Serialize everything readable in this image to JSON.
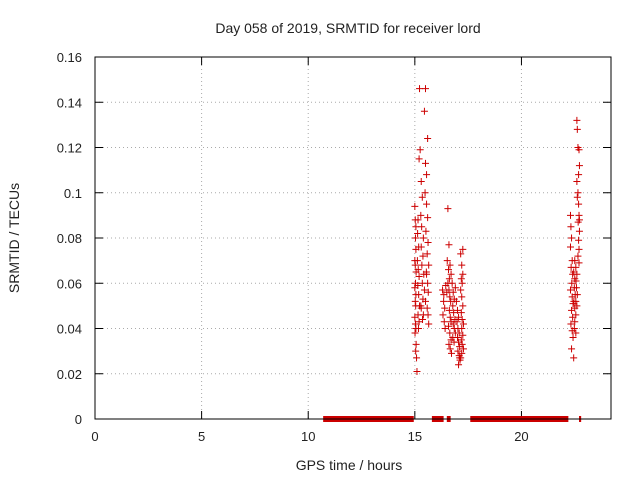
{
  "chart_data": {
    "type": "scatter",
    "title": "Day 058 of 2019, SRMTID for receiver lord",
    "xlabel": "GPS time / hours",
    "ylabel": "SRMTID / TECUs",
    "xlim": [
      0,
      24.2
    ],
    "ylim": [
      0,
      0.16
    ],
    "xticks": [
      "0",
      "5",
      "10",
      "15",
      "20"
    ],
    "xtick_values": [
      0,
      5,
      10,
      15,
      20
    ],
    "yticks": [
      "0",
      "0.02",
      "0.04",
      "0.06",
      "0.08",
      "0.1",
      "0.12",
      "0.14",
      "0.16"
    ],
    "ytick_values": [
      0,
      0.02,
      0.04,
      0.06,
      0.08,
      0.1,
      0.12,
      0.14,
      0.16
    ],
    "grid": true,
    "marker": "+",
    "color": "#cc0000",
    "series": [
      {
        "points": [
          [
            15.0,
            0.094
          ],
          [
            15.02,
            0.088
          ],
          [
            15.05,
            0.085
          ],
          [
            15.03,
            0.08
          ],
          [
            15.05,
            0.075
          ],
          [
            15.0,
            0.07
          ],
          [
            15.02,
            0.068
          ],
          [
            15.06,
            0.065
          ],
          [
            15.03,
            0.06
          ],
          [
            15.0,
            0.058
          ],
          [
            15.05,
            0.055
          ],
          [
            15.02,
            0.052
          ],
          [
            15.04,
            0.05
          ],
          [
            15.0,
            0.045
          ],
          [
            15.03,
            0.042
          ],
          [
            15.05,
            0.04
          ],
          [
            15.01,
            0.038
          ],
          [
            15.06,
            0.033
          ],
          [
            15.04,
            0.03
          ],
          [
            15.08,
            0.027
          ],
          [
            15.1,
            0.021
          ],
          [
            15.15,
            0.088
          ],
          [
            15.13,
            0.082
          ],
          [
            15.18,
            0.076
          ],
          [
            15.12,
            0.07
          ],
          [
            15.16,
            0.066
          ],
          [
            15.2,
            0.063
          ],
          [
            15.14,
            0.059
          ],
          [
            15.18,
            0.055
          ],
          [
            15.22,
            0.05
          ],
          [
            15.15,
            0.046
          ],
          [
            15.2,
            0.043
          ],
          [
            15.17,
            0.04
          ],
          [
            15.2,
            0.115
          ],
          [
            15.25,
            0.119
          ],
          [
            15.22,
            0.146
          ],
          [
            15.3,
            0.105
          ],
          [
            15.35,
            0.098
          ],
          [
            15.28,
            0.09
          ],
          [
            15.32,
            0.085
          ],
          [
            15.4,
            0.08
          ],
          [
            15.3,
            0.076
          ],
          [
            15.38,
            0.072
          ],
          [
            15.33,
            0.068
          ],
          [
            15.42,
            0.064
          ],
          [
            15.35,
            0.06
          ],
          [
            15.45,
            0.057
          ],
          [
            15.38,
            0.053
          ],
          [
            15.3,
            0.049
          ],
          [
            15.4,
            0.046
          ],
          [
            15.36,
            0.044
          ],
          [
            15.28,
            0.05
          ],
          [
            15.45,
            0.136
          ],
          [
            15.5,
            0.146
          ],
          [
            15.5,
            0.113
          ],
          [
            15.55,
            0.108
          ],
          [
            15.48,
            0.1
          ],
          [
            15.6,
            0.124
          ],
          [
            15.55,
            0.095
          ],
          [
            15.6,
            0.089
          ],
          [
            15.52,
            0.083
          ],
          [
            15.62,
            0.078
          ],
          [
            15.58,
            0.073
          ],
          [
            15.65,
            0.068
          ],
          [
            15.55,
            0.064
          ],
          [
            15.6,
            0.06
          ],
          [
            15.63,
            0.056
          ],
          [
            15.5,
            0.052
          ],
          [
            15.58,
            0.049
          ],
          [
            15.62,
            0.046
          ],
          [
            15.65,
            0.042
          ],
          [
            15.54,
            0.065
          ],
          [
            16.3,
            0.057
          ],
          [
            16.35,
            0.052
          ],
          [
            16.4,
            0.049
          ],
          [
            16.32,
            0.046
          ],
          [
            16.38,
            0.043
          ],
          [
            16.42,
            0.04
          ],
          [
            16.36,
            0.055
          ],
          [
            16.45,
            0.059
          ],
          [
            16.5,
            0.056
          ],
          [
            16.55,
            0.093
          ],
          [
            16.6,
            0.077
          ],
          [
            16.52,
            0.07
          ],
          [
            16.58,
            0.066
          ],
          [
            16.62,
            0.062
          ],
          [
            16.65,
            0.068
          ],
          [
            16.7,
            0.064
          ],
          [
            16.55,
            0.06
          ],
          [
            16.6,
            0.057
          ],
          [
            16.64,
            0.054
          ],
          [
            16.68,
            0.052
          ],
          [
            16.62,
            0.048
          ],
          [
            16.66,
            0.045
          ],
          [
            16.7,
            0.043
          ],
          [
            16.58,
            0.041
          ],
          [
            16.64,
            0.038
          ],
          [
            16.7,
            0.035
          ],
          [
            16.6,
            0.033
          ],
          [
            16.66,
            0.031
          ],
          [
            16.72,
            0.029
          ],
          [
            16.75,
            0.06
          ],
          [
            16.8,
            0.056
          ],
          [
            16.85,
            0.053
          ],
          [
            16.78,
            0.05
          ],
          [
            16.82,
            0.047
          ],
          [
            16.88,
            0.044
          ],
          [
            16.8,
            0.042
          ],
          [
            16.85,
            0.04
          ],
          [
            16.9,
            0.038
          ],
          [
            16.78,
            0.036
          ],
          [
            16.84,
            0.034
          ],
          [
            16.9,
            0.058
          ],
          [
            16.95,
            0.052
          ],
          [
            17.0,
            0.048
          ],
          [
            17.05,
            0.045
          ],
          [
            16.98,
            0.043
          ],
          [
            17.02,
            0.04
          ],
          [
            17.08,
            0.038
          ],
          [
            17.0,
            0.036
          ],
          [
            17.05,
            0.034
          ],
          [
            17.1,
            0.032
          ],
          [
            17.02,
            0.03
          ],
          [
            17.08,
            0.028
          ],
          [
            17.12,
            0.026
          ],
          [
            17.05,
            0.024
          ],
          [
            17.1,
            0.027
          ],
          [
            17.15,
            0.073
          ],
          [
            17.2,
            0.068
          ],
          [
            17.25,
            0.064
          ],
          [
            17.18,
            0.062
          ],
          [
            17.22,
            0.06
          ],
          [
            17.15,
            0.057
          ],
          [
            17.2,
            0.054
          ],
          [
            17.25,
            0.05
          ],
          [
            17.18,
            0.047
          ],
          [
            17.22,
            0.044
          ],
          [
            17.28,
            0.042
          ],
          [
            17.2,
            0.04
          ],
          [
            17.25,
            0.037
          ],
          [
            17.18,
            0.035
          ],
          [
            17.22,
            0.033
          ],
          [
            17.28,
            0.031
          ],
          [
            17.2,
            0.029
          ],
          [
            17.15,
            0.027
          ],
          [
            17.25,
            0.075
          ],
          [
            22.3,
            0.09
          ],
          [
            22.32,
            0.085
          ],
          [
            22.35,
            0.08
          ],
          [
            22.3,
            0.076
          ],
          [
            22.38,
            0.07
          ],
          [
            22.33,
            0.067
          ],
          [
            22.4,
            0.064
          ],
          [
            22.36,
            0.06
          ],
          [
            22.3,
            0.057
          ],
          [
            22.38,
            0.054
          ],
          [
            22.42,
            0.051
          ],
          [
            22.35,
            0.048
          ],
          [
            22.4,
            0.045
          ],
          [
            22.32,
            0.042
          ],
          [
            22.38,
            0.039
          ],
          [
            22.42,
            0.036
          ],
          [
            22.35,
            0.031
          ],
          [
            22.45,
            0.027
          ],
          [
            22.45,
            0.065
          ],
          [
            22.5,
            0.062
          ],
          [
            22.48,
            0.058
          ],
          [
            22.52,
            0.055
          ],
          [
            22.46,
            0.052
          ],
          [
            22.5,
            0.049
          ],
          [
            22.55,
            0.046
          ],
          [
            22.5,
            0.043
          ],
          [
            22.48,
            0.04
          ],
          [
            22.55,
            0.038
          ],
          [
            22.5,
            0.07
          ],
          [
            22.55,
            0.067
          ],
          [
            22.6,
            0.064
          ],
          [
            22.56,
            0.061
          ],
          [
            22.58,
            0.058
          ],
          [
            22.62,
            0.055
          ],
          [
            22.55,
            0.052
          ],
          [
            22.6,
            0.05
          ],
          [
            22.6,
            0.132
          ],
          [
            22.62,
            0.128
          ],
          [
            22.65,
            0.12
          ],
          [
            22.7,
            0.119
          ],
          [
            22.72,
            0.112
          ],
          [
            22.6,
            0.105
          ],
          [
            22.65,
            0.1
          ],
          [
            22.62,
            0.098
          ],
          [
            22.68,
            0.095
          ],
          [
            22.7,
            0.09
          ],
          [
            22.66,
            0.087
          ],
          [
            22.72,
            0.083
          ],
          [
            22.68,
            0.079
          ],
          [
            22.7,
            0.075
          ],
          [
            22.65,
            0.072
          ],
          [
            22.7,
            0.069
          ],
          [
            22.68,
            0.108
          ],
          [
            22.72,
            0.088
          ]
        ]
      },
      {
        "intervals": [
          [
            10.7,
            14.95
          ],
          [
            15.8,
            16.35
          ],
          [
            16.5,
            16.68
          ],
          [
            17.6,
            22.2
          ],
          [
            22.7,
            22.8
          ]
        ],
        "y": 0
      }
    ]
  }
}
